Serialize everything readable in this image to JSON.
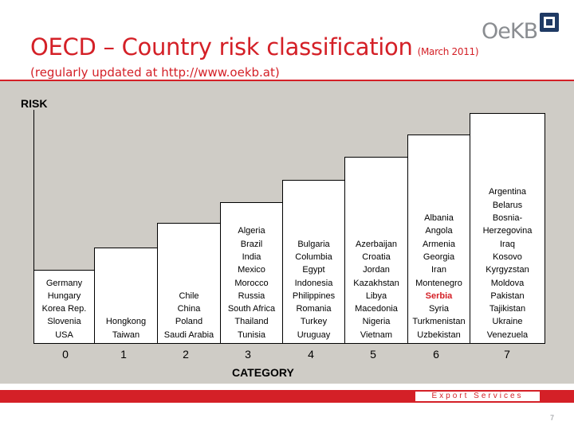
{
  "header": {
    "title": "OECD – Country risk classification",
    "date": "(March  2011)",
    "subtitle": "(regularly updated at http://www.oekb.at)",
    "logo_text": "OeKB"
  },
  "diagram": {
    "y_axis_label": "RISK",
    "x_axis_label": "CATEGORY",
    "categories": [
      {
        "label": "0",
        "countries": [
          "Germany",
          "Hungary",
          "Korea Rep.",
          "Slovenia",
          "USA"
        ]
      },
      {
        "label": "1",
        "countries": [
          "Hongkong",
          "Taiwan"
        ]
      },
      {
        "label": "2",
        "countries": [
          "Chile",
          "China",
          "Poland",
          "Saudi Arabia"
        ]
      },
      {
        "label": "3",
        "countries": [
          "Algeria",
          "Brazil",
          "India",
          "Mexico",
          "Morocco",
          "Russia",
          "South Africa",
          "Thailand",
          "Tunisia"
        ]
      },
      {
        "label": "4",
        "countries": [
          "Bulgaria",
          "Columbia",
          "Egypt",
          "Indonesia",
          "Philippines",
          "Romania",
          "Turkey",
          "Uruguay"
        ]
      },
      {
        "label": "5",
        "countries": [
          "Azerbaijan",
          "Croatia",
          "Jordan",
          "Kazakhstan",
          "Libya",
          "Macedonia",
          "Nigeria",
          "Vietnam"
        ]
      },
      {
        "label": "6",
        "countries": [
          "Albania",
          "Angola",
          "Armenia",
          "Georgia",
          "Iran",
          "Montenegro",
          "Serbia",
          "Syria",
          "Turkmenistan",
          "Uzbekistan"
        ]
      },
      {
        "label": "7",
        "countries": [
          "Argentina",
          "Belarus",
          "Bosnia-",
          "Herzegovina",
          "Iraq",
          "Kosovo",
          "Kyrgyzstan",
          "Moldova",
          "Pakistan",
          "Tajikistan",
          "Ukraine",
          "Venezuela"
        ]
      }
    ],
    "highlighted_country": "Serbia",
    "highlight_color": "#d42027"
  },
  "footer": {
    "label": "Export Services",
    "page_number": "7"
  },
  "colors": {
    "brand_red": "#d42027",
    "panel_gray": "#cfccc6",
    "logo_gray": "#8a8d91",
    "logo_navy": "#1f3a64"
  }
}
